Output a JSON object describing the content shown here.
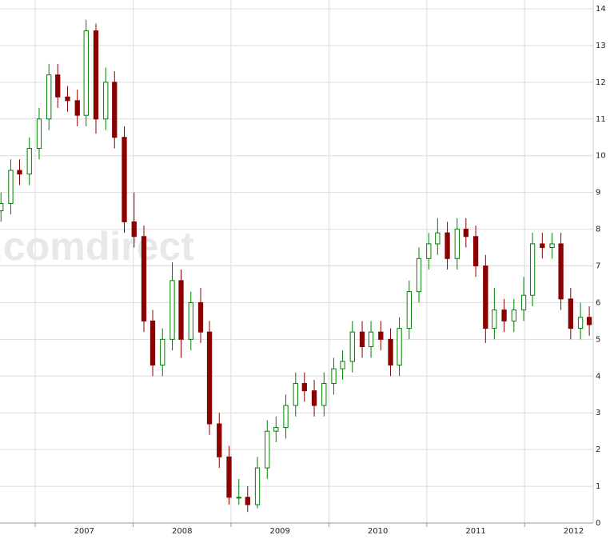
{
  "chart_data": {
    "type": "candlestick",
    "watermark": ".comdirect",
    "x": [
      2006.65,
      2006.75,
      2006.84,
      2006.94,
      2007.04,
      2007.14,
      2007.23,
      2007.33,
      2007.43,
      2007.52,
      2007.62,
      2007.72,
      2007.81,
      2007.91,
      2008.01,
      2008.11,
      2008.2,
      2008.3,
      2008.4,
      2008.49,
      2008.59,
      2008.69,
      2008.78,
      2008.88,
      2008.98,
      2009.08,
      2009.17,
      2009.27,
      2009.37,
      2009.46,
      2009.56,
      2009.66,
      2009.75,
      2009.85,
      2009.95,
      2010.05,
      2010.14,
      2010.24,
      2010.34,
      2010.43,
      2010.53,
      2010.63,
      2010.72,
      2010.82,
      2010.92,
      2011.02,
      2011.11,
      2011.21,
      2011.31,
      2011.4,
      2011.5,
      2011.6,
      2011.69,
      2011.79,
      2011.89,
      2011.99,
      2012.08,
      2012.18,
      2012.28,
      2012.37,
      2012.47,
      2012.57,
      2012.66
    ],
    "open": [
      8.5,
      8.7,
      9.6,
      9.5,
      10.2,
      11.0,
      12.2,
      11.6,
      11.5,
      11.1,
      13.4,
      11.0,
      12.0,
      10.5,
      8.2,
      7.8,
      5.5,
      4.3,
      5.0,
      6.6,
      5.0,
      6.0,
      5.2,
      2.7,
      1.8,
      0.7,
      0.7,
      0.5,
      1.5,
      2.5,
      2.6,
      3.2,
      3.8,
      3.6,
      3.2,
      3.8,
      4.2,
      4.4,
      5.2,
      4.8,
      5.2,
      5.0,
      4.3,
      5.3,
      6.3,
      7.2,
      7.6,
      7.9,
      7.2,
      8.0,
      7.8,
      7.0,
      5.3,
      5.8,
      5.5,
      5.8,
      6.2,
      7.6,
      7.5,
      7.6,
      6.1,
      5.3,
      5.6
    ],
    "high": [
      9.0,
      9.9,
      9.9,
      10.5,
      11.3,
      12.5,
      12.5,
      11.9,
      11.8,
      13.7,
      13.6,
      12.4,
      12.3,
      10.8,
      9.0,
      8.1,
      5.8,
      5.3,
      7.1,
      6.9,
      6.3,
      6.4,
      5.5,
      3.0,
      2.1,
      1.2,
      1.0,
      1.8,
      2.8,
      2.9,
      3.5,
      4.1,
      4.1,
      3.9,
      4.1,
      4.5,
      4.7,
      5.5,
      5.5,
      5.5,
      5.5,
      5.3,
      5.6,
      6.6,
      7.5,
      7.9,
      8.3,
      8.2,
      8.3,
      8.3,
      8.1,
      7.3,
      6.4,
      6.1,
      6.1,
      6.7,
      7.9,
      7.9,
      7.9,
      7.9,
      6.4,
      6.0,
      5.9
    ],
    "low": [
      8.2,
      8.4,
      9.2,
      9.2,
      9.9,
      10.7,
      11.3,
      11.2,
      10.8,
      10.8,
      10.6,
      10.7,
      10.2,
      7.9,
      7.5,
      5.2,
      4.0,
      4.0,
      4.7,
      4.5,
      4.7,
      4.9,
      2.4,
      1.5,
      0.5,
      0.5,
      0.3,
      0.4,
      1.2,
      2.2,
      2.3,
      2.9,
      3.3,
      2.9,
      2.9,
      3.5,
      3.9,
      4.1,
      4.5,
      4.5,
      4.7,
      4.0,
      4.0,
      5.0,
      6.0,
      6.9,
      7.3,
      6.9,
      6.9,
      7.5,
      6.7,
      4.9,
      5.0,
      5.2,
      5.2,
      5.5,
      5.9,
      7.2,
      7.2,
      5.8,
      5.0,
      5.0,
      5.1
    ],
    "close": [
      8.7,
      9.6,
      9.5,
      10.2,
      11.0,
      12.2,
      11.6,
      11.5,
      11.1,
      13.4,
      11.0,
      12.0,
      10.5,
      8.2,
      7.8,
      5.5,
      4.3,
      5.0,
      6.6,
      5.0,
      6.0,
      5.2,
      2.7,
      1.8,
      0.7,
      0.7,
      0.5,
      1.5,
      2.5,
      2.6,
      3.2,
      3.8,
      3.6,
      3.2,
      3.8,
      4.2,
      4.4,
      5.2,
      4.8,
      5.2,
      5.0,
      4.3,
      5.3,
      6.3,
      7.2,
      7.6,
      7.9,
      7.2,
      8.0,
      7.8,
      7.0,
      5.3,
      5.8,
      5.5,
      5.8,
      6.2,
      7.6,
      7.5,
      7.6,
      6.1,
      5.3,
      5.6,
      5.4
    ],
    "up_color": "#008000",
    "down_color": "#8b0000",
    "xlim": [
      2006.64,
      2012.7
    ],
    "xticks": [
      2007,
      2008,
      2009,
      2010,
      2011,
      2012
    ],
    "ylim": [
      0,
      14
    ],
    "yticks": [
      0,
      1,
      2,
      3,
      4,
      5,
      6,
      7,
      8,
      9,
      10,
      11,
      12,
      13,
      14
    ],
    "grid": true
  }
}
